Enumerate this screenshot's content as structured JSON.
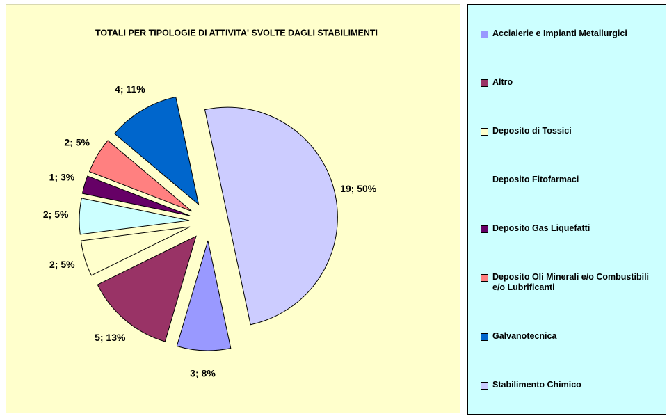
{
  "chart_data": {
    "type": "pie",
    "title": "TOTALI PER TIPOLOGIE DI ATTIVITA' SVOLTE DAGLI STABILIMENTI",
    "categories": [
      "Acciaierie e Impianti Metallurgici",
      "Altro",
      "Deposito di Tossici",
      "Deposito Fitofarmaci",
      "Deposito Gas Liquefatti",
      "Deposito Oli Minerali e/o Combustibili e/o Lubrificanti",
      "Galvanotecnica",
      "Stabilimento Chimico"
    ],
    "values": [
      3,
      5,
      2,
      2,
      1,
      2,
      4,
      19
    ],
    "value_labels": [
      "3; 8%",
      "5; 13%",
      "2; 5%",
      "2; 5%",
      "1; 3%",
      "2; 5%",
      "4; 11%",
      "19; 50%"
    ],
    "colors": [
      "#9999ff",
      "#993366",
      "#ffffcc",
      "#ccffff",
      "#660066",
      "#ff8080",
      "#0066cc",
      "#ccccff"
    ],
    "legend": "right"
  }
}
